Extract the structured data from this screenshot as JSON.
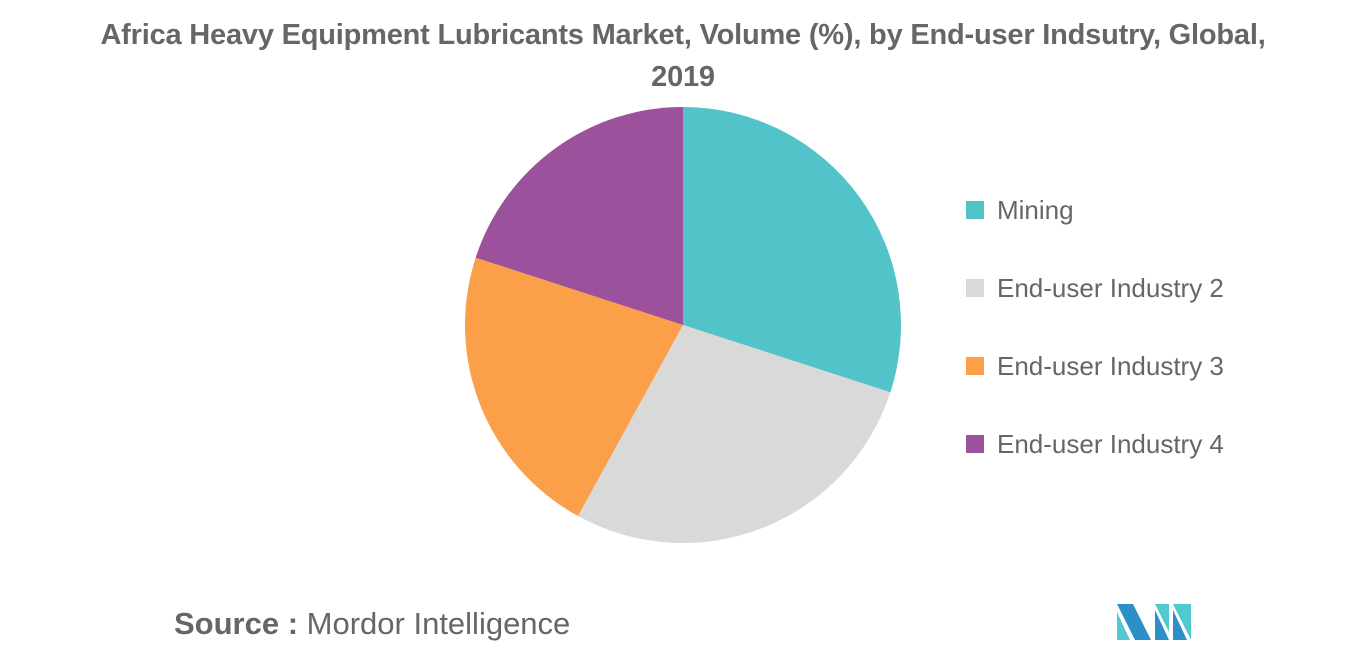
{
  "title": "Africa Heavy Equipment Lubricants Market, Volume (%), by End-user Indsutry, Global, 2019",
  "title_lines": [
    "Africa Heavy Equipment Lubricants Market, Volume (%), by End-user Indsutry, Global,",
    "2019"
  ],
  "legend": {
    "items": [
      {
        "label": "Mining",
        "color": "#52c3c8"
      },
      {
        "label": "End-user Industry 2",
        "color": "#d9d9d9"
      },
      {
        "label": "End-user Industry 3",
        "color": "#fb9f48"
      },
      {
        "label": "End-user Industry 4",
        "color": "#9b519b"
      }
    ]
  },
  "source": {
    "label": "Source :",
    "value": "Mordor Intelligence"
  },
  "logo": {
    "name": "mordor-intelligence-logo",
    "colors": [
      "#2d8fc8",
      "#52c8d0"
    ]
  },
  "chart_data": {
    "type": "pie",
    "title": "Africa Heavy Equipment Lubricants Market, Volume (%), by End-user Indsutry, Global, 2019",
    "categories": [
      "Mining",
      "End-user Industry 2",
      "End-user Industry 3",
      "End-user Industry 4"
    ],
    "values": [
      30,
      28,
      22,
      20
    ],
    "colors": [
      "#52c3c8",
      "#d9d9d9",
      "#fb9f48",
      "#9b519b"
    ],
    "start_angle_deg": 0,
    "direction": "clockwise",
    "legend_position": "right",
    "data_labels": false,
    "unit": "%"
  }
}
